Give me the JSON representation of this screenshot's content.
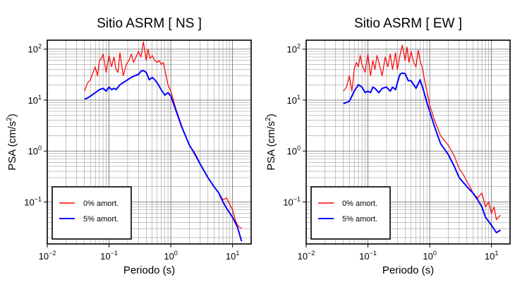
{
  "chart_data": [
    {
      "type": "line",
      "title": "Sitio ASRM [ NS ]",
      "xlabel": "Periodo (s)",
      "ylabel": {
        "base": "PSA (cm/s",
        "sup": "2",
        "close": ")"
      },
      "xscale": "log",
      "yscale": "log",
      "xlim": [
        0.01,
        20
      ],
      "ylim": [
        0.015,
        150
      ],
      "xticks": [
        {
          "value": 0.01,
          "base": "10",
          "exp": "−2"
        },
        {
          "value": 0.1,
          "base": "10",
          "exp": "−1"
        },
        {
          "value": 1,
          "base": "10",
          "exp": "0"
        },
        {
          "value": 10,
          "base": "10",
          "exp": "1"
        }
      ],
      "yticks": [
        {
          "value": 0.1,
          "base": "10",
          "exp": "−1"
        },
        {
          "value": 1,
          "base": "10",
          "exp": "0"
        },
        {
          "value": 10,
          "base": "10",
          "exp": "1"
        },
        {
          "value": 100,
          "base": "10",
          "exp": "2"
        }
      ],
      "grid": true,
      "legend_position": "bottom-left",
      "series": [
        {
          "name": "0% amort.",
          "color": "#ff0000",
          "x": [
            0.04,
            0.045,
            0.05,
            0.055,
            0.06,
            0.065,
            0.07,
            0.075,
            0.08,
            0.09,
            0.1,
            0.11,
            0.12,
            0.13,
            0.14,
            0.15,
            0.17,
            0.19,
            0.21,
            0.23,
            0.25,
            0.28,
            0.3,
            0.33,
            0.36,
            0.4,
            0.43,
            0.46,
            0.5,
            0.55,
            0.6,
            0.65,
            0.7,
            0.75,
            0.8,
            0.9,
            1.0,
            1.2,
            1.4,
            1.6,
            2.0,
            2.5,
            3.0,
            4.0,
            5.0,
            6.0,
            7.0,
            8.0,
            9.0,
            10.0,
            11.0,
            12.0,
            14.0
          ],
          "y": [
            15,
            22,
            25,
            35,
            45,
            30,
            60,
            65,
            80,
            35,
            75,
            45,
            70,
            40,
            35,
            85,
            30,
            50,
            60,
            80,
            55,
            75,
            90,
            70,
            140,
            60,
            100,
            65,
            75,
            60,
            55,
            60,
            50,
            55,
            40,
            20,
            15,
            7,
            4,
            2.5,
            1.3,
            0.8,
            0.55,
            0.3,
            0.2,
            0.15,
            0.11,
            0.12,
            0.09,
            0.07,
            0.045,
            0.035,
            0.03
          ]
        },
        {
          "name": "5% amort.",
          "color": "#0000ff",
          "x": [
            0.04,
            0.045,
            0.05,
            0.055,
            0.06,
            0.07,
            0.08,
            0.09,
            0.1,
            0.11,
            0.12,
            0.13,
            0.15,
            0.17,
            0.2,
            0.23,
            0.26,
            0.3,
            0.33,
            0.36,
            0.4,
            0.45,
            0.5,
            0.55,
            0.6,
            0.7,
            0.8,
            0.9,
            1.0,
            1.2,
            1.5,
            2.0,
            2.5,
            3.0,
            4.0,
            5.0,
            6.0,
            7.0,
            8.0,
            10.0,
            12.0,
            14.0
          ],
          "y": [
            10.5,
            11,
            12,
            13,
            14,
            16,
            17,
            15,
            18,
            16,
            17,
            16,
            20,
            22,
            25,
            28,
            30,
            32,
            37,
            38,
            35,
            25,
            28,
            25,
            22,
            16,
            12.5,
            14,
            12,
            6.5,
            3,
            1.3,
            0.85,
            0.55,
            0.3,
            0.2,
            0.15,
            0.1,
            0.075,
            0.05,
            0.032,
            0.017
          ]
        }
      ]
    },
    {
      "type": "line",
      "title": "Sitio ASRM [ EW ]",
      "xlabel": "Periodo (s)",
      "ylabel": {
        "base": "PSA (cm/s",
        "sup": "2",
        "close": ")"
      },
      "xscale": "log",
      "yscale": "log",
      "xlim": [
        0.01,
        20
      ],
      "ylim": [
        0.015,
        150
      ],
      "xticks": [
        {
          "value": 0.01,
          "base": "10",
          "exp": "−2"
        },
        {
          "value": 0.1,
          "base": "10",
          "exp": "−1"
        },
        {
          "value": 1,
          "base": "10",
          "exp": "0"
        },
        {
          "value": 10,
          "base": "10",
          "exp": "1"
        }
      ],
      "yticks": [
        {
          "value": 0.1,
          "base": "10",
          "exp": "−1"
        },
        {
          "value": 1,
          "base": "10",
          "exp": "0"
        },
        {
          "value": 10,
          "base": "10",
          "exp": "1"
        },
        {
          "value": 100,
          "base": "10",
          "exp": "2"
        }
      ],
      "grid": true,
      "legend_position": "bottom-left",
      "series": [
        {
          "name": "0% amort.",
          "color": "#ff0000",
          "x": [
            0.04,
            0.045,
            0.05,
            0.055,
            0.06,
            0.065,
            0.07,
            0.075,
            0.08,
            0.09,
            0.1,
            0.11,
            0.12,
            0.13,
            0.14,
            0.15,
            0.17,
            0.19,
            0.21,
            0.23,
            0.25,
            0.28,
            0.3,
            0.33,
            0.36,
            0.4,
            0.43,
            0.46,
            0.5,
            0.55,
            0.6,
            0.65,
            0.7,
            0.75,
            0.8,
            0.9,
            1.0,
            1.2,
            1.5,
            2.0,
            2.5,
            3.0,
            3.5,
            4.0,
            4.5,
            5.0,
            6.0,
            7.0,
            8.0,
            9.0,
            10.0,
            11.0,
            12.0,
            14.0
          ],
          "y": [
            15,
            18,
            30,
            15,
            40,
            55,
            45,
            75,
            50,
            35,
            80,
            30,
            60,
            40,
            75,
            55,
            30,
            70,
            45,
            80,
            40,
            85,
            40,
            75,
            120,
            60,
            110,
            55,
            90,
            55,
            45,
            95,
            60,
            45,
            30,
            15,
            8,
            4,
            2,
            1.3,
            0.8,
            0.45,
            0.35,
            0.25,
            0.2,
            0.15,
            0.12,
            0.15,
            0.08,
            0.1,
            0.06,
            0.08,
            0.045,
            0.055
          ]
        },
        {
          "name": "5% amort.",
          "color": "#0000ff",
          "x": [
            0.04,
            0.045,
            0.05,
            0.055,
            0.06,
            0.07,
            0.08,
            0.09,
            0.1,
            0.11,
            0.12,
            0.13,
            0.15,
            0.17,
            0.2,
            0.23,
            0.25,
            0.28,
            0.3,
            0.33,
            0.36,
            0.4,
            0.45,
            0.5,
            0.55,
            0.6,
            0.7,
            0.8,
            0.9,
            1.0,
            1.2,
            1.5,
            2.0,
            2.5,
            3.0,
            4.0,
            5.0,
            6.0,
            7.0,
            8.0,
            10.0,
            12.0,
            14.0
          ],
          "y": [
            8.5,
            9,
            9.5,
            12,
            15,
            20,
            18,
            14,
            15,
            14,
            18,
            17,
            14,
            17,
            18,
            15,
            18,
            16,
            22,
            32,
            34,
            33,
            24,
            24,
            20,
            17,
            25,
            15,
            9,
            6,
            3,
            1.4,
            0.85,
            0.5,
            0.3,
            0.2,
            0.15,
            0.11,
            0.08,
            0.05,
            0.035,
            0.025,
            0.028
          ]
        }
      ]
    }
  ]
}
